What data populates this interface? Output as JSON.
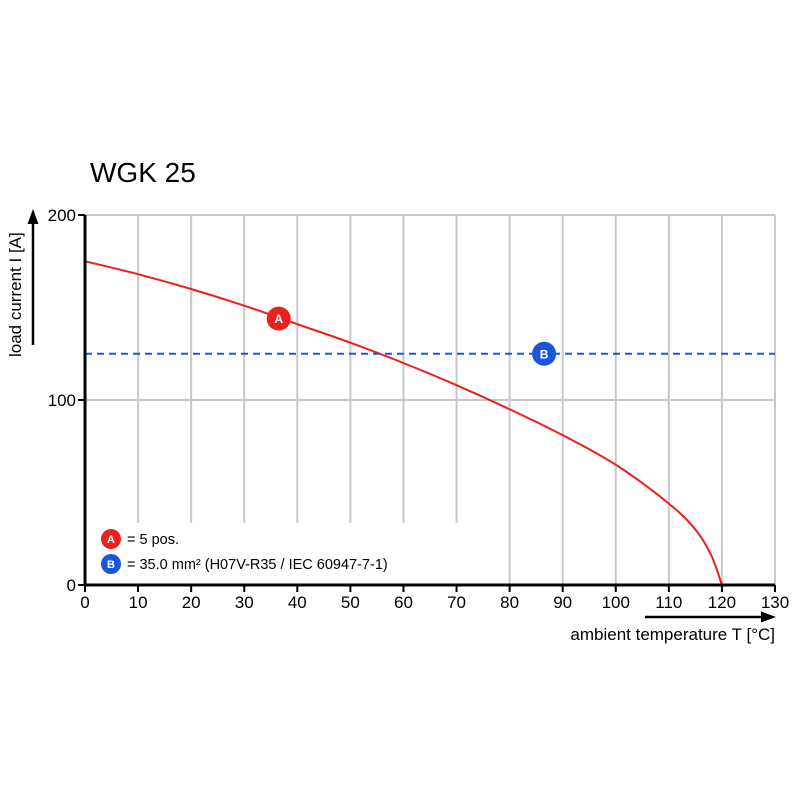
{
  "chart_data": {
    "type": "line",
    "title": "WGK 25",
    "xlabel": "ambient temperature T [°C]",
    "ylabel": "load current I [A]",
    "xlim": [
      0,
      130
    ],
    "ylim": [
      0,
      200
    ],
    "x_ticks": [
      0,
      10,
      20,
      30,
      40,
      50,
      60,
      70,
      80,
      90,
      100,
      110,
      120,
      130
    ],
    "y_ticks": [
      0,
      100,
      200
    ],
    "grid": true,
    "series": [
      {
        "marker": "A",
        "color": "#e8211c",
        "style": "solid",
        "x": [
          0,
          10,
          20,
          30,
          40,
          50,
          60,
          70,
          80,
          90,
          100,
          110,
          115,
          118,
          120
        ],
        "y": [
          175,
          168,
          160,
          151,
          141,
          131,
          120,
          108,
          95,
          81,
          65,
          44,
          30,
          16,
          0
        ]
      },
      {
        "marker": "B",
        "color": "#1c56d8",
        "style": "dashed",
        "x": [
          0,
          130
        ],
        "y": [
          125,
          125
        ]
      }
    ],
    "markers": [
      {
        "label": "A",
        "x": 36.5,
        "y": 144,
        "color": "#e8211c"
      },
      {
        "label": "B",
        "x": 86.5,
        "y": 125,
        "color": "#1c56d8"
      }
    ],
    "legend": {
      "placement": "bottom-left",
      "items": [
        {
          "label": "A",
          "text": "= 5 pos.",
          "color": "#e8211c"
        },
        {
          "label": "B",
          "text": "= 35.0 mm² (H07V-R35 / IEC 60947-7-1)",
          "color": "#1c56d8"
        }
      ]
    }
  }
}
